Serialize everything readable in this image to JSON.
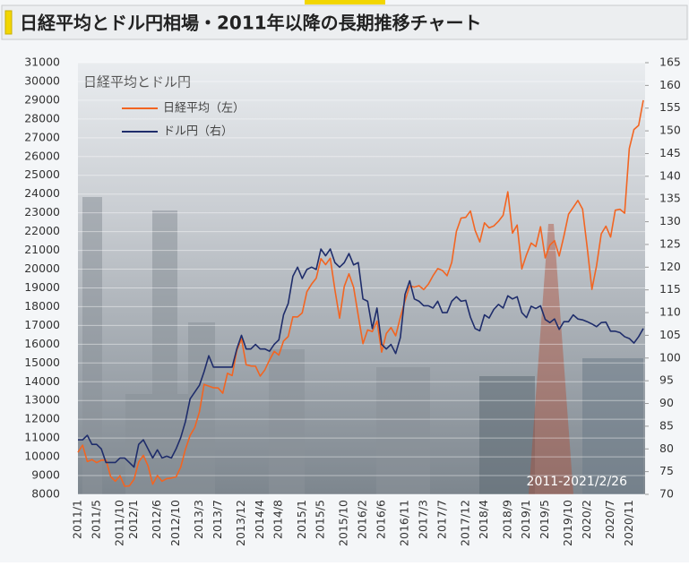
{
  "page_title": "日経平均とドル円相場・2011年以降の長期推移チャート",
  "chart_data": {
    "type": "line",
    "title": "日経平均とドル円",
    "annotation": "2011-2021/2/26",
    "categories": [
      "2011/1",
      null,
      null,
      null,
      "2011/5",
      null,
      null,
      null,
      null,
      "2011/10",
      null,
      null,
      "2012/1",
      null,
      null,
      null,
      null,
      "2012/6",
      null,
      null,
      null,
      "2012/10",
      null,
      null,
      null,
      null,
      "2013/3",
      null,
      null,
      null,
      "2013/7",
      null,
      null,
      null,
      null,
      "2013/12",
      null,
      null,
      null,
      "2014/4",
      null,
      null,
      null,
      "2014/8",
      null,
      null,
      null,
      null,
      "2015/1",
      null,
      null,
      null,
      "2015/5",
      null,
      null,
      null,
      null,
      "2015/10",
      null,
      null,
      null,
      "2016/2",
      null,
      null,
      null,
      "2016/6",
      null,
      null,
      null,
      null,
      "2016/11",
      null,
      null,
      null,
      "2017/3",
      null,
      null,
      null,
      "2017/7",
      null,
      null,
      null,
      null,
      "2017/12",
      null,
      null,
      null,
      "2018/4",
      null,
      null,
      null,
      null,
      "2018/9",
      null,
      null,
      null,
      "2019/1",
      null,
      null,
      null,
      "2019/5",
      null,
      null,
      null,
      null,
      "2019/10",
      null,
      null,
      null,
      "2020/2",
      null,
      null,
      null,
      null,
      "2020/7",
      null,
      null,
      null,
      "2020/11",
      null,
      null,
      null
    ],
    "series": [
      {
        "name": "日経平均（左）",
        "color": "#f26522",
        "values": [
          10240,
          10620,
          9750,
          9850,
          9690,
          9820,
          9830,
          8950,
          8700,
          8990,
          8430,
          8450,
          8800,
          9720,
          10080,
          9520,
          8540,
          9000,
          8700,
          8840,
          8870,
          8930,
          9450,
          10400,
          11140,
          11560,
          12400,
          13860,
          13770,
          13680,
          13670,
          13390,
          14450,
          14330,
          15660,
          16290,
          14910,
          14840,
          14830,
          14300,
          14630,
          15160,
          15620,
          15420,
          16170,
          16410,
          17460,
          17450,
          17670,
          18800,
          19200,
          19520,
          20560,
          20240,
          20580,
          18890,
          17390,
          19080,
          19750,
          19030,
          17520,
          16030,
          16760,
          16670,
          17230,
          15580,
          16570,
          16890,
          16450,
          17430,
          18310,
          19110,
          19040,
          19120,
          18910,
          19200,
          19650,
          20030,
          19930,
          19650,
          20360,
          22010,
          22720,
          22760,
          23100,
          22070,
          21450,
          22470,
          22200,
          22300,
          22550,
          22870,
          24120,
          21920,
          22350,
          20010,
          20770,
          21390,
          21200,
          22260,
          20600,
          21280,
          21520,
          20700,
          21760,
          22930,
          23290,
          23660,
          23200,
          21140,
          18920,
          20190,
          21880,
          22290,
          21710,
          23140,
          23190,
          22980,
          26430,
          27440,
          27660,
          29000
        ]
      },
      {
        "name": "ドル円（右）",
        "color": "#1f2d6b",
        "axis": "y2",
        "values": [
          82,
          82,
          83,
          81,
          81,
          80,
          77,
          77,
          77,
          78,
          78,
          77,
          76,
          81,
          82,
          80,
          78,
          79.8,
          78,
          78.4,
          78,
          80,
          82.5,
          86,
          91,
          92.5,
          94,
          97,
          100.5,
          98,
          98,
          98,
          98,
          98,
          102,
          105,
          102,
          102,
          103,
          102,
          102,
          101.5,
          103,
          104,
          109.5,
          112,
          118,
          120,
          117.5,
          119.5,
          120,
          119.5,
          124,
          122.5,
          124,
          121,
          120,
          121,
          123,
          120.5,
          121,
          113,
          112.5,
          106.5,
          111,
          103,
          102,
          103,
          101,
          104.5,
          114,
          117,
          113,
          112.5,
          111.5,
          111.5,
          111,
          112.5,
          110,
          110,
          112.5,
          113.5,
          112.5,
          112.7,
          109,
          106.5,
          106,
          109.5,
          108.8,
          110.7,
          111.8,
          111,
          113.7,
          113,
          113.5,
          110,
          108.9,
          111.4,
          110.9,
          111.5,
          108.5,
          107.8,
          108.6,
          106.3,
          108,
          108,
          109.5,
          108.6,
          108.4,
          108,
          107.5,
          106.9,
          107.8,
          107.9,
          105.9,
          105.9,
          105.6,
          104.7,
          104.3,
          103.3,
          104.7,
          106.5
        ]
      }
    ],
    "ylim": [
      8000,
      31000
    ],
    "yticks": [
      8000,
      9000,
      10000,
      11000,
      12000,
      13000,
      14000,
      15000,
      16000,
      17000,
      18000,
      19000,
      20000,
      21000,
      22000,
      23000,
      24000,
      25000,
      26000,
      27000,
      28000,
      29000,
      30000,
      31000
    ],
    "y2lim": [
      70,
      165
    ],
    "y2ticks": [
      70,
      75,
      80,
      85,
      90,
      95,
      100,
      105,
      110,
      115,
      120,
      125,
      130,
      135,
      140,
      145,
      150,
      155,
      160,
      165
    ],
    "grid": true
  }
}
